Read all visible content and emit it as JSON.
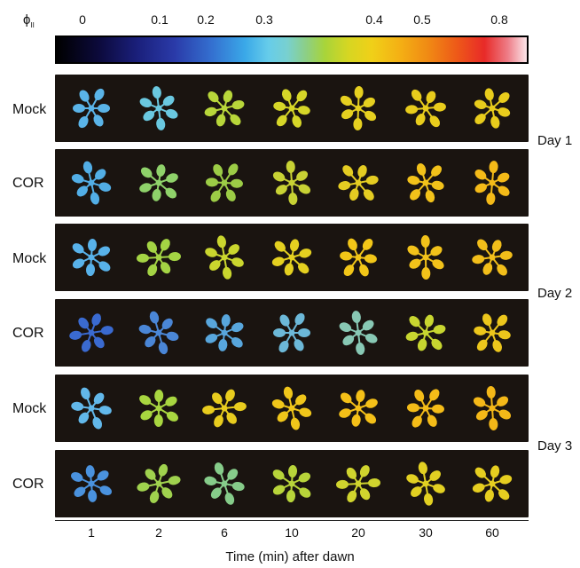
{
  "colorbar": {
    "symbol": "ϕ",
    "subscript": "II",
    "ticks": [
      "0",
      "0.1",
      "0.2",
      "0.3",
      "0.4",
      "0.5",
      "0.8"
    ]
  },
  "rows": [
    {
      "label": "Mock",
      "colors": [
        "#5ab4e8",
        "#6ac8e0",
        "#b8d63a",
        "#d6d628",
        "#e6d020",
        "#e8cc1c",
        "#e8cc1c"
      ]
    },
    {
      "label": "COR",
      "colors": [
        "#52aee6",
        "#8fd26a",
        "#9ccc46",
        "#c8d234",
        "#e4cc22",
        "#f2c21a",
        "#f4ba18"
      ]
    },
    {
      "label": "Mock",
      "colors": [
        "#58b2ea",
        "#a4d444",
        "#cad62e",
        "#e4d020",
        "#f2c618",
        "#f2c21a",
        "#f2be1a"
      ]
    },
    {
      "label": "COR",
      "colors": [
        "#3a6ad0",
        "#4a86d6",
        "#58a6dc",
        "#6cb8d8",
        "#88c8b4",
        "#c8d630",
        "#ecc61c"
      ]
    },
    {
      "label": "Mock",
      "colors": [
        "#62b8ea",
        "#a8d640",
        "#e8cc1e",
        "#f0c61a",
        "#f4c018",
        "#f4bc18",
        "#f4b818"
      ]
    },
    {
      "label": "COR",
      "colors": [
        "#4a92de",
        "#a0d24e",
        "#86cc8a",
        "#b8d43a",
        "#d0d42e",
        "#e2d022",
        "#e6ce20"
      ]
    }
  ],
  "days": [
    "Day 1",
    "Day 2",
    "Day 3"
  ],
  "x_ticks": [
    "1",
    "2",
    "6",
    "10",
    "20",
    "30",
    "60"
  ],
  "x_label": "Time (min) after dawn"
}
